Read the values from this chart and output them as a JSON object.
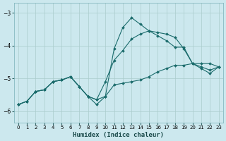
{
  "xlabel": "Humidex (Indice chaleur)",
  "bg_color": "#cce8ee",
  "line_color": "#1a6b6b",
  "grid_color": "#aacccc",
  "xlim": [
    -0.5,
    23.5
  ],
  "ylim": [
    -6.35,
    -2.7
  ],
  "yticks": [
    -6,
    -5,
    -4,
    -3
  ],
  "xticks": [
    0,
    1,
    2,
    3,
    4,
    5,
    6,
    7,
    8,
    9,
    10,
    11,
    12,
    13,
    14,
    15,
    16,
    17,
    18,
    19,
    20,
    21,
    22,
    23
  ],
  "line1_x": [
    0,
    1,
    2,
    3,
    4,
    5,
    6,
    7,
    8,
    9,
    10,
    11,
    12,
    13,
    14,
    15,
    16,
    17,
    18,
    19,
    20,
    21,
    22,
    23
  ],
  "line1_y": [
    -5.8,
    -5.7,
    -5.4,
    -5.35,
    -5.1,
    -5.05,
    -4.95,
    -5.25,
    -5.55,
    -5.65,
    -5.55,
    -5.2,
    -5.15,
    -5.1,
    -5.05,
    -4.95,
    -4.8,
    -4.7,
    -4.6,
    -4.6,
    -4.55,
    -4.55,
    -4.55,
    -4.65
  ],
  "line2_x": [
    0,
    1,
    2,
    3,
    4,
    5,
    6,
    7,
    8,
    9,
    10,
    11,
    12,
    13,
    14,
    15,
    16,
    17,
    18,
    19,
    20,
    21,
    22,
    23
  ],
  "line2_y": [
    -5.8,
    -5.7,
    -5.4,
    -5.35,
    -5.1,
    -5.05,
    -4.95,
    -5.25,
    -5.55,
    -5.65,
    -5.1,
    -4.45,
    -4.15,
    -3.8,
    -3.65,
    -3.55,
    -3.6,
    -3.65,
    -3.75,
    -4.1,
    -4.55,
    -4.65,
    -4.75,
    -4.65
  ],
  "line3_x": [
    0,
    1,
    2,
    3,
    4,
    5,
    6,
    7,
    8,
    9,
    10,
    11,
    12,
    13,
    14,
    15,
    16,
    17,
    18,
    19,
    20,
    21,
    22,
    23
  ],
  "line3_y": [
    -5.8,
    -5.7,
    -5.4,
    -5.35,
    -5.1,
    -5.05,
    -4.95,
    -5.25,
    -5.55,
    -5.8,
    -5.55,
    -4.1,
    -3.45,
    -3.15,
    -3.35,
    -3.55,
    -3.7,
    -3.85,
    -4.05,
    -4.05,
    -4.55,
    -4.7,
    -4.85,
    -4.65
  ]
}
